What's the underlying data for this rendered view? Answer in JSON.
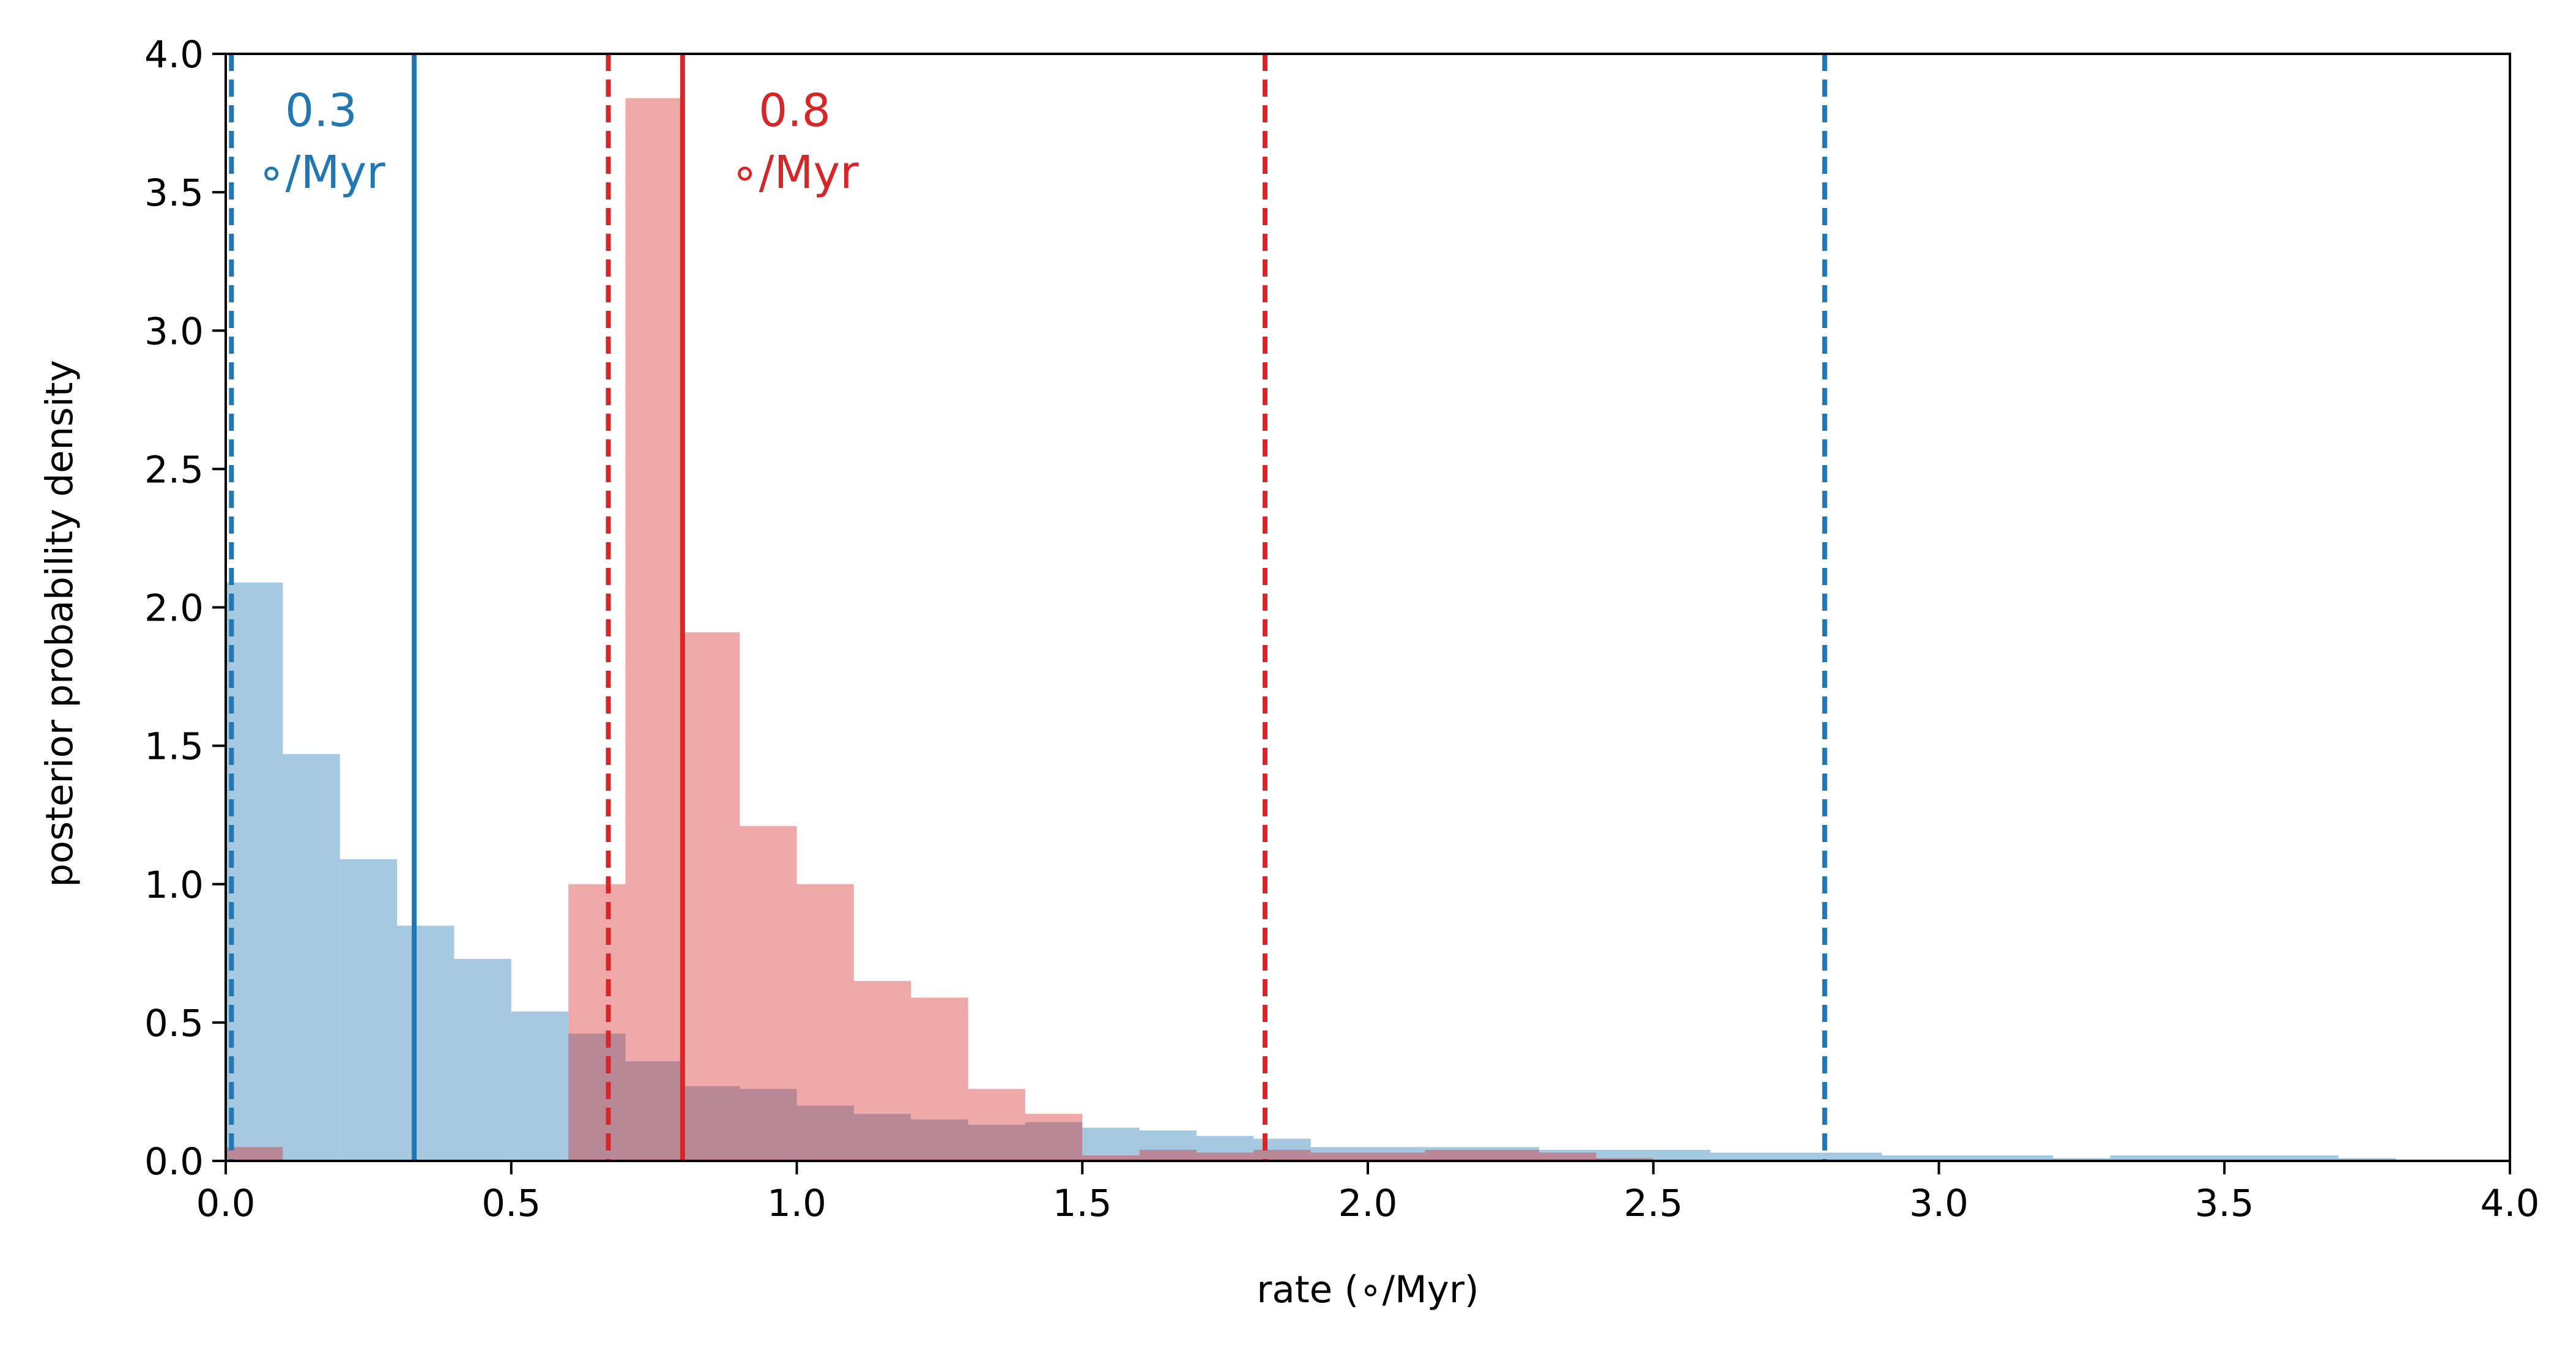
{
  "chart_data": {
    "type": "histogram",
    "xlabel": "rate (∘/Myr)",
    "ylabel": "posterior probability density",
    "xlim": [
      0,
      4.0
    ],
    "ylim": [
      0,
      4.0
    ],
    "x_ticks": [
      "0.0",
      "0.5",
      "1.0",
      "1.5",
      "2.0",
      "2.5",
      "3.0",
      "3.5",
      "4.0"
    ],
    "y_ticks": [
      "0.0",
      "0.5",
      "1.0",
      "1.5",
      "2.0",
      "2.5",
      "3.0",
      "3.5",
      "4.0"
    ],
    "grid": false,
    "legend": "none",
    "series": [
      {
        "color": "#1f77b4",
        "bins": [
          {
            "x0": 0.0,
            "x1": 0.1,
            "y": 2.09
          },
          {
            "x0": 0.1,
            "x1": 0.2,
            "y": 1.47
          },
          {
            "x0": 0.2,
            "x1": 0.3,
            "y": 1.09
          },
          {
            "x0": 0.3,
            "x1": 0.4,
            "y": 0.85
          },
          {
            "x0": 0.4,
            "x1": 0.5,
            "y": 0.73
          },
          {
            "x0": 0.5,
            "x1": 0.6,
            "y": 0.54
          },
          {
            "x0": 0.6,
            "x1": 0.7,
            "y": 0.46
          },
          {
            "x0": 0.7,
            "x1": 0.8,
            "y": 0.36
          },
          {
            "x0": 0.8,
            "x1": 0.9,
            "y": 0.27
          },
          {
            "x0": 0.9,
            "x1": 1.0,
            "y": 0.26
          },
          {
            "x0": 1.0,
            "x1": 1.1,
            "y": 0.2
          },
          {
            "x0": 1.1,
            "x1": 1.2,
            "y": 0.17
          },
          {
            "x0": 1.2,
            "x1": 1.3,
            "y": 0.15
          },
          {
            "x0": 1.3,
            "x1": 1.4,
            "y": 0.13
          },
          {
            "x0": 1.4,
            "x1": 1.5,
            "y": 0.14
          },
          {
            "x0": 1.5,
            "x1": 1.6,
            "y": 0.12
          },
          {
            "x0": 1.6,
            "x1": 1.7,
            "y": 0.11
          },
          {
            "x0": 1.7,
            "x1": 1.8,
            "y": 0.09
          },
          {
            "x0": 1.8,
            "x1": 1.9,
            "y": 0.08
          },
          {
            "x0": 1.9,
            "x1": 2.0,
            "y": 0.05
          },
          {
            "x0": 2.0,
            "x1": 2.1,
            "y": 0.05
          },
          {
            "x0": 2.1,
            "x1": 2.2,
            "y": 0.05
          },
          {
            "x0": 2.2,
            "x1": 2.3,
            "y": 0.05
          },
          {
            "x0": 2.3,
            "x1": 2.4,
            "y": 0.04
          },
          {
            "x0": 2.4,
            "x1": 2.5,
            "y": 0.04
          },
          {
            "x0": 2.5,
            "x1": 2.6,
            "y": 0.04
          },
          {
            "x0": 2.6,
            "x1": 2.7,
            "y": 0.03
          },
          {
            "x0": 2.7,
            "x1": 2.8,
            "y": 0.03
          },
          {
            "x0": 2.8,
            "x1": 2.9,
            "y": 0.03
          },
          {
            "x0": 2.9,
            "x1": 3.0,
            "y": 0.02
          },
          {
            "x0": 3.0,
            "x1": 3.1,
            "y": 0.02
          },
          {
            "x0": 3.1,
            "x1": 3.2,
            "y": 0.02
          },
          {
            "x0": 3.2,
            "x1": 3.3,
            "y": 0.01
          },
          {
            "x0": 3.3,
            "x1": 3.4,
            "y": 0.02
          },
          {
            "x0": 3.4,
            "x1": 3.5,
            "y": 0.02
          },
          {
            "x0": 3.5,
            "x1": 3.6,
            "y": 0.02
          },
          {
            "x0": 3.6,
            "x1": 3.7,
            "y": 0.02
          },
          {
            "x0": 3.7,
            "x1": 3.8,
            "y": 0.01
          }
        ],
        "median": 0.33,
        "interval": [
          0.01,
          2.8
        ],
        "annotation_value": "0.3",
        "annotation_unit": "∘/Myr"
      },
      {
        "color": "#d62728",
        "bins": [
          {
            "x0": 0.0,
            "x1": 0.1,
            "y": 0.05
          },
          {
            "x0": 0.6,
            "x1": 0.7,
            "y": 1.0
          },
          {
            "x0": 0.7,
            "x1": 0.8,
            "y": 3.84
          },
          {
            "x0": 0.8,
            "x1": 0.9,
            "y": 1.91
          },
          {
            "x0": 0.9,
            "x1": 1.0,
            "y": 1.21
          },
          {
            "x0": 1.0,
            "x1": 1.1,
            "y": 1.0
          },
          {
            "x0": 1.1,
            "x1": 1.2,
            "y": 0.65
          },
          {
            "x0": 1.2,
            "x1": 1.3,
            "y": 0.59
          },
          {
            "x0": 1.3,
            "x1": 1.4,
            "y": 0.26
          },
          {
            "x0": 1.4,
            "x1": 1.5,
            "y": 0.17
          },
          {
            "x0": 1.5,
            "x1": 1.6,
            "y": 0.02
          },
          {
            "x0": 1.6,
            "x1": 1.7,
            "y": 0.04
          },
          {
            "x0": 1.7,
            "x1": 1.8,
            "y": 0.03
          },
          {
            "x0": 1.8,
            "x1": 1.9,
            "y": 0.04
          },
          {
            "x0": 1.9,
            "x1": 2.0,
            "y": 0.03
          },
          {
            "x0": 2.0,
            "x1": 2.1,
            "y": 0.03
          },
          {
            "x0": 2.1,
            "x1": 2.2,
            "y": 0.04
          },
          {
            "x0": 2.2,
            "x1": 2.3,
            "y": 0.04
          },
          {
            "x0": 2.3,
            "x1": 2.4,
            "y": 0.03
          },
          {
            "x0": 2.4,
            "x1": 2.5,
            "y": 0.01
          }
        ],
        "median": 0.8,
        "interval": [
          0.67,
          1.82
        ],
        "annotation_value": "0.8",
        "annotation_unit": "∘/Myr"
      }
    ]
  }
}
